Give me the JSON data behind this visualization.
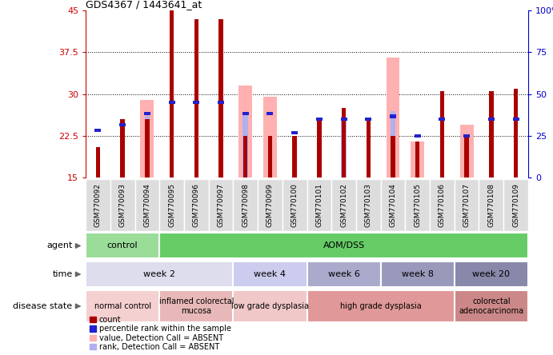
{
  "title": "GDS4367 / 1443641_at",
  "samples": [
    "GSM770092",
    "GSM770093",
    "GSM770094",
    "GSM770095",
    "GSM770096",
    "GSM770097",
    "GSM770098",
    "GSM770099",
    "GSM770100",
    "GSM770101",
    "GSM770102",
    "GSM770103",
    "GSM770104",
    "GSM770105",
    "GSM770106",
    "GSM770107",
    "GSM770108",
    "GSM770109"
  ],
  "count_values": [
    20.5,
    25.5,
    25.5,
    45.0,
    43.5,
    43.5,
    22.5,
    22.5,
    22.5,
    25.5,
    27.5,
    25.5,
    22.5,
    21.5,
    30.5,
    22.5,
    30.5,
    31.0
  ],
  "percentile_values": [
    23.5,
    24.5,
    26.5,
    28.5,
    28.5,
    28.5,
    26.5,
    26.5,
    23.0,
    25.5,
    25.5,
    25.5,
    26.0,
    22.5,
    25.5,
    22.5,
    25.5,
    25.5
  ],
  "absent_value": [
    null,
    null,
    29.0,
    null,
    null,
    null,
    31.5,
    29.5,
    null,
    null,
    null,
    null,
    36.5,
    21.5,
    null,
    24.5,
    null,
    null
  ],
  "absent_rank": [
    null,
    null,
    26.0,
    null,
    null,
    26.5,
    26.5,
    null,
    null,
    null,
    25.5,
    null,
    27.0,
    null,
    null,
    null,
    null,
    null
  ],
  "ylim_left": [
    15,
    45
  ],
  "ylim_right": [
    0,
    100
  ],
  "yticks_left": [
    15,
    22.5,
    30,
    37.5,
    45
  ],
  "yticks_right": [
    0,
    25,
    50,
    75,
    100
  ],
  "left_color": "#cc0000",
  "right_color": "#0000cc",
  "bar_color": "#aa0000",
  "blue_color": "#2222cc",
  "pink_color": "#ffb0b0",
  "light_blue_color": "#b0b0ee",
  "agent_groups": [
    {
      "label": "control",
      "start": 0,
      "end": 3,
      "color": "#99dd99"
    },
    {
      "label": "AOM/DSS",
      "start": 3,
      "end": 18,
      "color": "#66cc66"
    }
  ],
  "time_groups": [
    {
      "label": "week 2",
      "start": 0,
      "end": 6,
      "color": "#ddddee"
    },
    {
      "label": "week 4",
      "start": 6,
      "end": 9,
      "color": "#ccccee"
    },
    {
      "label": "week 6",
      "start": 9,
      "end": 12,
      "color": "#aaaacc"
    },
    {
      "label": "week 8",
      "start": 12,
      "end": 15,
      "color": "#9999bb"
    },
    {
      "label": "week 20",
      "start": 15,
      "end": 18,
      "color": "#8888aa"
    }
  ],
  "disease_groups": [
    {
      "label": "normal control",
      "start": 0,
      "end": 3,
      "color": "#f5d0d0"
    },
    {
      "label": "inflamed colorectal\nmucosa",
      "start": 3,
      "end": 6,
      "color": "#e8b8b8"
    },
    {
      "label": "low grade dysplasia",
      "start": 6,
      "end": 9,
      "color": "#f0c8c8"
    },
    {
      "label": "high grade dysplasia",
      "start": 9,
      "end": 15,
      "color": "#e09898"
    },
    {
      "label": "colorectal\nadenocarcinoma",
      "start": 15,
      "end": 18,
      "color": "#cc8888"
    }
  ],
  "legend_labels": [
    "count",
    "percentile rank within the sample",
    "value, Detection Call = ABSENT",
    "rank, Detection Call = ABSENT"
  ],
  "legend_colors": [
    "#aa0000",
    "#2222cc",
    "#ffb0b0",
    "#b0b0ee"
  ]
}
